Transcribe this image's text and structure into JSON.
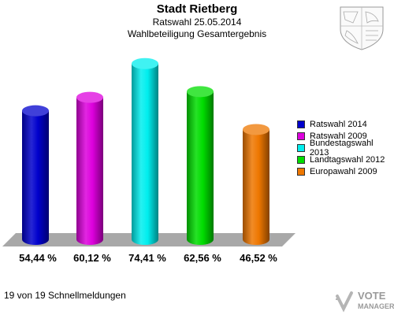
{
  "header": {
    "title": "Stadt Rietberg",
    "subtitle": "Ratswahl 25.05.2014",
    "subtitle2": "Wahlbeteiligung Gesamtergebnis"
  },
  "chart_data": {
    "type": "bar",
    "title": "Wahlbeteiligung Gesamtergebnis",
    "categories": [
      "Ratswahl 2014",
      "Ratswahl 2009",
      "Bundestagswahl 2013",
      "Landtagswahl 2012",
      "Europawahl 2009"
    ],
    "values": [
      54.44,
      60.12,
      74.41,
      62.56,
      46.52
    ],
    "value_labels": [
      "54,44 %",
      "60,12 %",
      "74,41 %",
      "62,56 %",
      "46,52 %"
    ],
    "colors": [
      "#0000cc",
      "#dd00dd",
      "#00eeee",
      "#00dd00",
      "#ee7700"
    ],
    "legend": {
      "position": "right",
      "entries": [
        "Ratswahl 2014",
        "Ratswahl 2009",
        "Bundestagswahl 2013",
        "Landtagswahl 2012",
        "Europawahl 2009"
      ]
    },
    "grid": false,
    "ylim": [
      0,
      80
    ]
  },
  "footer": {
    "status_text": "19 von 19 Schnellmeldungen"
  },
  "branding": {
    "logo_line1": "VOTE",
    "logo_line2": "MANAGER"
  }
}
